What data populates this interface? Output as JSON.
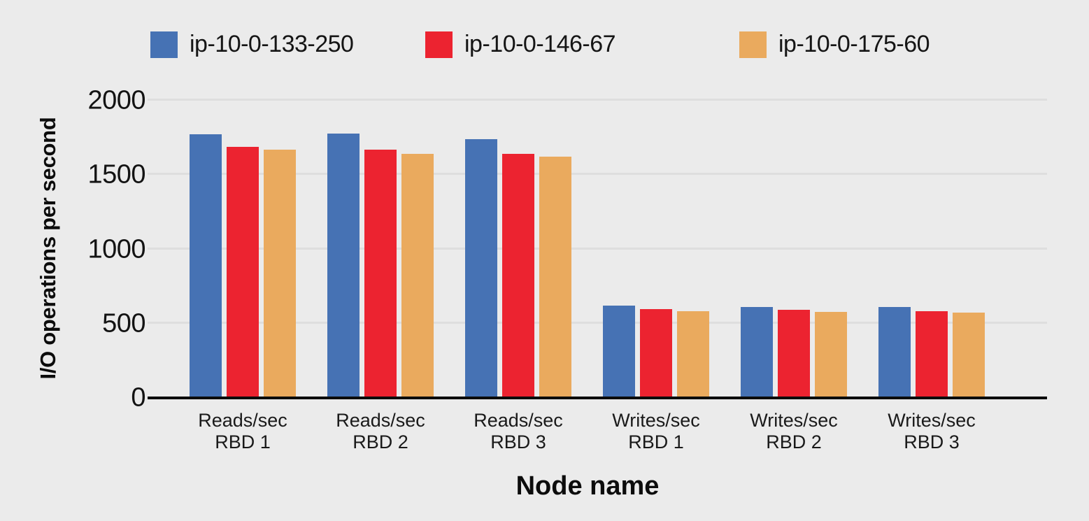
{
  "chart_data": {
    "type": "bar",
    "title": "",
    "xlabel": "Node name",
    "ylabel": "I/O operations per second",
    "ylim": [
      0,
      2000
    ],
    "yticks": [
      0,
      500,
      1000,
      1500,
      2000
    ],
    "grid": "horizontal",
    "legend_position": "top",
    "background_color": "#ebebeb",
    "gridline_color": "#dedede",
    "axis_line_color": "#0b0b0b",
    "categories": [
      [
        "Reads/sec",
        "RBD 1"
      ],
      [
        "Reads/sec",
        "RBD 2"
      ],
      [
        "Reads/sec",
        "RBD 3"
      ],
      [
        "Writes/sec",
        "RBD 1"
      ],
      [
        "Writes/sec",
        "RBD 2"
      ],
      [
        "Writes/sec",
        "RBD 3"
      ]
    ],
    "series": [
      {
        "name": "ip-10-0-133-250",
        "color": "#4672b4",
        "values": [
          1765,
          1770,
          1730,
          612,
          603,
          600
        ]
      },
      {
        "name": "ip-10-0-146-67",
        "color": "#ec2330",
        "values": [
          1680,
          1660,
          1635,
          590,
          583,
          572
        ]
      },
      {
        "name": "ip-10-0-175-60",
        "color": "#eaaa5e",
        "values": [
          1660,
          1635,
          1612,
          572,
          570,
          563
        ]
      }
    ]
  }
}
